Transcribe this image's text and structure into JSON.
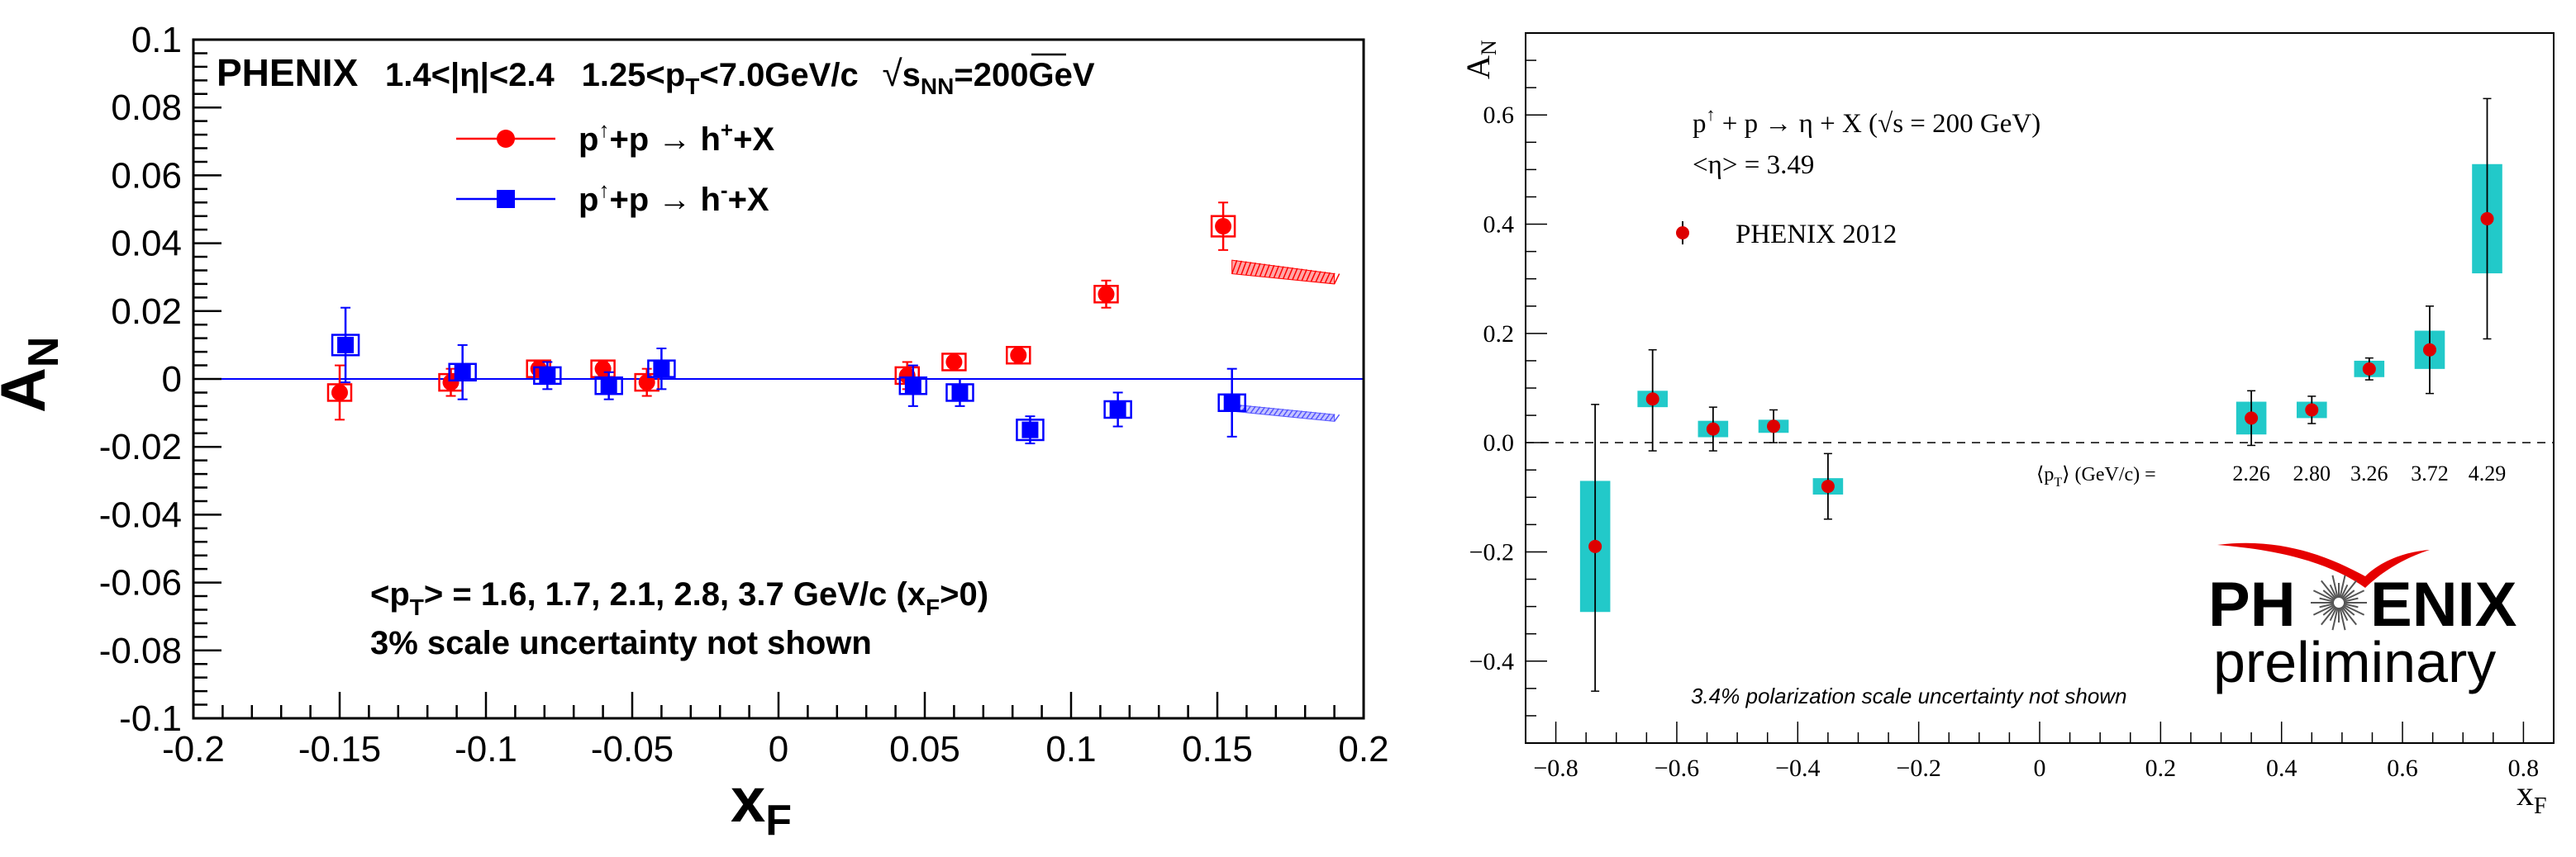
{
  "chart_data": [
    {
      "type": "scatter",
      "title": "PHENIX  1.4<|η|<2.4  1.25<pT<7.0GeV/c √sNN=200GeV",
      "title_parts": {
        "experiment": "PHENIX",
        "eta_range": "1.4<|η|<2.4",
        "pt_range_pre": "1.25<p",
        "pt_sub": "T",
        "pt_range_post": "<7.0GeV/c",
        "sqrt_s_pre": "s",
        "sqrt_s_sub": "NN",
        "sqrt_s_post": "=200GeV"
      },
      "xlabel": "x",
      "xlabel_sub": "F",
      "ylabel": "A",
      "ylabel_sub": "N",
      "xlim": [
        -0.2,
        0.2
      ],
      "ylim": [
        -0.1,
        0.1
      ],
      "xticks": [
        -0.2,
        -0.15,
        -0.1,
        -0.05,
        0,
        0.05,
        0.1,
        0.15,
        0.2
      ],
      "xtick_labels": [
        "-0.2",
        "-0.15",
        "-0.1",
        "-0.05",
        "0",
        "0.05",
        "0.1",
        "0.15",
        "0.2"
      ],
      "yticks": [
        -0.1,
        -0.08,
        -0.06,
        -0.04,
        -0.02,
        0,
        0.02,
        0.04,
        0.06,
        0.08,
        0.1
      ],
      "ytick_labels": [
        "-0.1",
        "-0.08",
        "-0.06",
        "-0.04",
        "-0.02",
        "0",
        "0.02",
        "0.04",
        "0.06",
        "0.08",
        "0.1"
      ],
      "reference_line": 0,
      "legend_position": "top-center",
      "series": [
        {
          "name": "p↑+p → h⁺+X",
          "legend": {
            "pre": "p",
            "sup1": "↑",
            "mid": "+p → h",
            "sup2": "+",
            "post": "+X"
          },
          "marker": "circle",
          "color": "#ff0000",
          "x": [
            -0.15,
            -0.112,
            -0.082,
            -0.06,
            -0.045,
            0.044,
            0.06,
            0.082,
            0.112,
            0.152
          ],
          "y": [
            -0.004,
            -0.001,
            0.003,
            0.003,
            -0.001,
            0.001,
            0.005,
            0.007,
            0.025,
            0.045
          ],
          "err": [
            0.008,
            0.004,
            0.002,
            0.002,
            0.004,
            0.004,
            0.0015,
            0.0015,
            0.004,
            0.007
          ],
          "syst": [
            0.0015,
            0.0015,
            0.0015,
            0.0015,
            0.0015,
            0.0015,
            0.0015,
            0.0015,
            0.0015,
            0.003
          ]
        },
        {
          "name": "p↑+p → h⁻+X",
          "legend": {
            "pre": "p",
            "sup1": "↑",
            "mid": "+p → h",
            "sup2": "-",
            "post": "+X"
          },
          "marker": "square",
          "color": "#0000ff",
          "x": [
            -0.148,
            -0.108,
            -0.079,
            -0.058,
            -0.04,
            0.046,
            0.062,
            0.086,
            0.116,
            0.155
          ],
          "y": [
            0.01,
            0.002,
            0.001,
            -0.002,
            0.003,
            -0.002,
            -0.004,
            -0.015,
            -0.009,
            -0.007
          ],
          "err": [
            0.011,
            0.008,
            0.004,
            0.004,
            0.006,
            0.006,
            0.004,
            0.004,
            0.005,
            0.01
          ],
          "syst": [
            0.003,
            0.002,
            0.002,
            0.002,
            0.002,
            0.002,
            0.002,
            0.003,
            0.002,
            0.002
          ]
        }
      ],
      "theory_bands": [
        {
          "color": "#ff0000",
          "x": [
            0.155,
            0.19
          ],
          "y_low": [
            0.031,
            0.028
          ],
          "y_high": [
            0.035,
            0.031
          ]
        },
        {
          "color": "#5555ff",
          "x": [
            0.155,
            0.19
          ],
          "y_low": [
            -0.0095,
            -0.0125
          ],
          "y_high": [
            -0.0075,
            -0.0105
          ]
        }
      ],
      "annotations": {
        "pt_line": {
          "pre": "<p",
          "sub": "T",
          "mid": "> = 1.6, 1.7, 2.1, 2.8, 3.7 GeV/c (x",
          "sub2": "F",
          "post": ">0)"
        },
        "scale_note": "3% scale uncertainty not shown"
      }
    },
    {
      "type": "scatter",
      "title": "p↑ + p → η + X (√s = 200 GeV)",
      "title_parts": {
        "pre": "p",
        "sup": "↑",
        "post": " + p → η + X (",
        "sqrt": "√",
        "sqrt_post": "s = 200 GeV)"
      },
      "subtitle": "<η> = 3.49",
      "xlabel": "x",
      "xlabel_sub": "F",
      "ylabel": "A",
      "ylabel_sub": "N",
      "xlim": [
        -0.85,
        0.85
      ],
      "ylim": [
        -0.55,
        0.75
      ],
      "xticks": [
        -0.8,
        -0.6,
        -0.4,
        -0.2,
        0,
        0.2,
        0.4,
        0.6,
        0.8
      ],
      "xtick_labels": [
        "−0.8",
        "−0.6",
        "−0.4",
        "−0.2",
        "0",
        "0.2",
        "0.4",
        "0.6",
        "0.8"
      ],
      "yticks": [
        -0.4,
        -0.2,
        0,
        0.2,
        0.4,
        0.6
      ],
      "ytick_labels": [
        "−0.4",
        "−0.2",
        "0.0",
        "0.2",
        "0.4",
        "0.6"
      ],
      "reference_line": 0,
      "legend_position": "top-left",
      "series": [
        {
          "name": "PHENIX 2012",
          "marker": "circle",
          "color": "#dd0000",
          "syst_color": "#22c9c9",
          "x": [
            -0.735,
            -0.64,
            -0.54,
            -0.44,
            -0.35,
            0.35,
            0.45,
            0.545,
            0.645,
            0.74
          ],
          "y": [
            -0.19,
            0.08,
            0.025,
            0.03,
            -0.08,
            0.045,
            0.06,
            0.135,
            0.17,
            0.41
          ],
          "err_low": [
            0.265,
            0.095,
            0.04,
            0.03,
            0.06,
            0.05,
            0.025,
            0.02,
            0.08,
            0.22
          ],
          "err_high": [
            0.26,
            0.09,
            0.04,
            0.03,
            0.06,
            0.05,
            0.025,
            0.02,
            0.08,
            0.22
          ],
          "syst_low": [
            0.12,
            0.015,
            0.015,
            0.012,
            0.015,
            0.03,
            0.015,
            0.015,
            0.035,
            0.1
          ],
          "syst_high": [
            0.12,
            0.015,
            0.015,
            0.012,
            0.015,
            0.03,
            0.015,
            0.015,
            0.035,
            0.1
          ],
          "box_halfwidth": 0.025
        }
      ],
      "pt_label": {
        "pre": "⟨p",
        "sub": "T",
        "post": "⟩ (GeV/c) ="
      },
      "pt_values": [
        "2.26",
        "2.80",
        "3.26",
        "3.72",
        "4.29"
      ],
      "pt_value_x": [
        0.35,
        0.45,
        0.545,
        0.645,
        0.74
      ],
      "logo": {
        "pre": "PH",
        "post": "ENIX",
        "subtitle": "preliminary"
      },
      "scale_note": "3.4% polarization scale uncertainty not shown"
    }
  ]
}
